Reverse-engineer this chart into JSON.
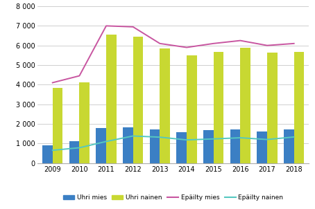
{
  "years": [
    2009,
    2010,
    2011,
    2012,
    2013,
    2014,
    2015,
    2016,
    2017,
    2018
  ],
  "uhri_mies": [
    920,
    1100,
    1800,
    1820,
    1720,
    1560,
    1670,
    1730,
    1610,
    1720
  ],
  "uhri_nainen": [
    3850,
    4100,
    6550,
    6450,
    5850,
    5500,
    5680,
    5880,
    5650,
    5680
  ],
  "epailty_mies": [
    4100,
    4450,
    7000,
    6950,
    6100,
    5900,
    6100,
    6250,
    6000,
    6100
  ],
  "epailty_nainen": [
    650,
    780,
    1100,
    1380,
    1320,
    1180,
    1230,
    1290,
    1200,
    1330
  ],
  "bar_color_mies": "#3B7FC4",
  "bar_color_nainen": "#C8D832",
  "line_color_epailty_mies": "#C855A0",
  "line_color_epailty_nainen": "#55C8C0",
  "ylim": [
    0,
    8000
  ],
  "yticks": [
    0,
    1000,
    2000,
    3000,
    4000,
    5000,
    6000,
    7000,
    8000
  ],
  "legend_labels": [
    "Uhri mies",
    "Uhri nainen",
    "Epäilty mies",
    "Epäilty nainen"
  ],
  "background_color": "#ffffff",
  "grid_color": "#c8c8c8"
}
